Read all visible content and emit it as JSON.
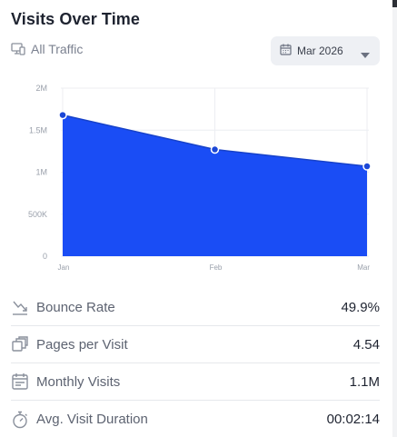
{
  "header": {
    "title": "Visits Over Time",
    "filter_label": "All Traffic",
    "filter_icon": "devices-icon",
    "date_value": "Mar 2026"
  },
  "colors": {
    "accent": "#1a4df5",
    "point_fill": "#1c47d6",
    "grid": "#eceef2",
    "axis_text": "#9aa0ab"
  },
  "chart_data": {
    "type": "area",
    "categories": [
      "Jan",
      "Feb",
      "Mar"
    ],
    "series": [
      {
        "values": [
          1680000,
          1270000,
          1070000
        ]
      }
    ],
    "yticks": [
      {
        "value": 0,
        "label": "0"
      },
      {
        "value": 500000,
        "label": "500K"
      },
      {
        "value": 1000000,
        "label": "1M"
      },
      {
        "value": 1500000,
        "label": "1.5M"
      },
      {
        "value": 2000000,
        "label": "2M"
      }
    ],
    "ylim": [
      0,
      2000000
    ],
    "grid": true,
    "legend": "none"
  },
  "metrics": [
    {
      "label": "Bounce Rate",
      "value": "49.9%",
      "icon": "trend-down-icon"
    },
    {
      "label": "Pages per Visit",
      "value": "4.54",
      "icon": "pages-icon"
    },
    {
      "label": "Monthly Visits",
      "value": "1.1M",
      "icon": "calendar-icon"
    },
    {
      "label": "Avg. Visit Duration",
      "value": "00:02:14",
      "icon": "timer-icon"
    }
  ]
}
